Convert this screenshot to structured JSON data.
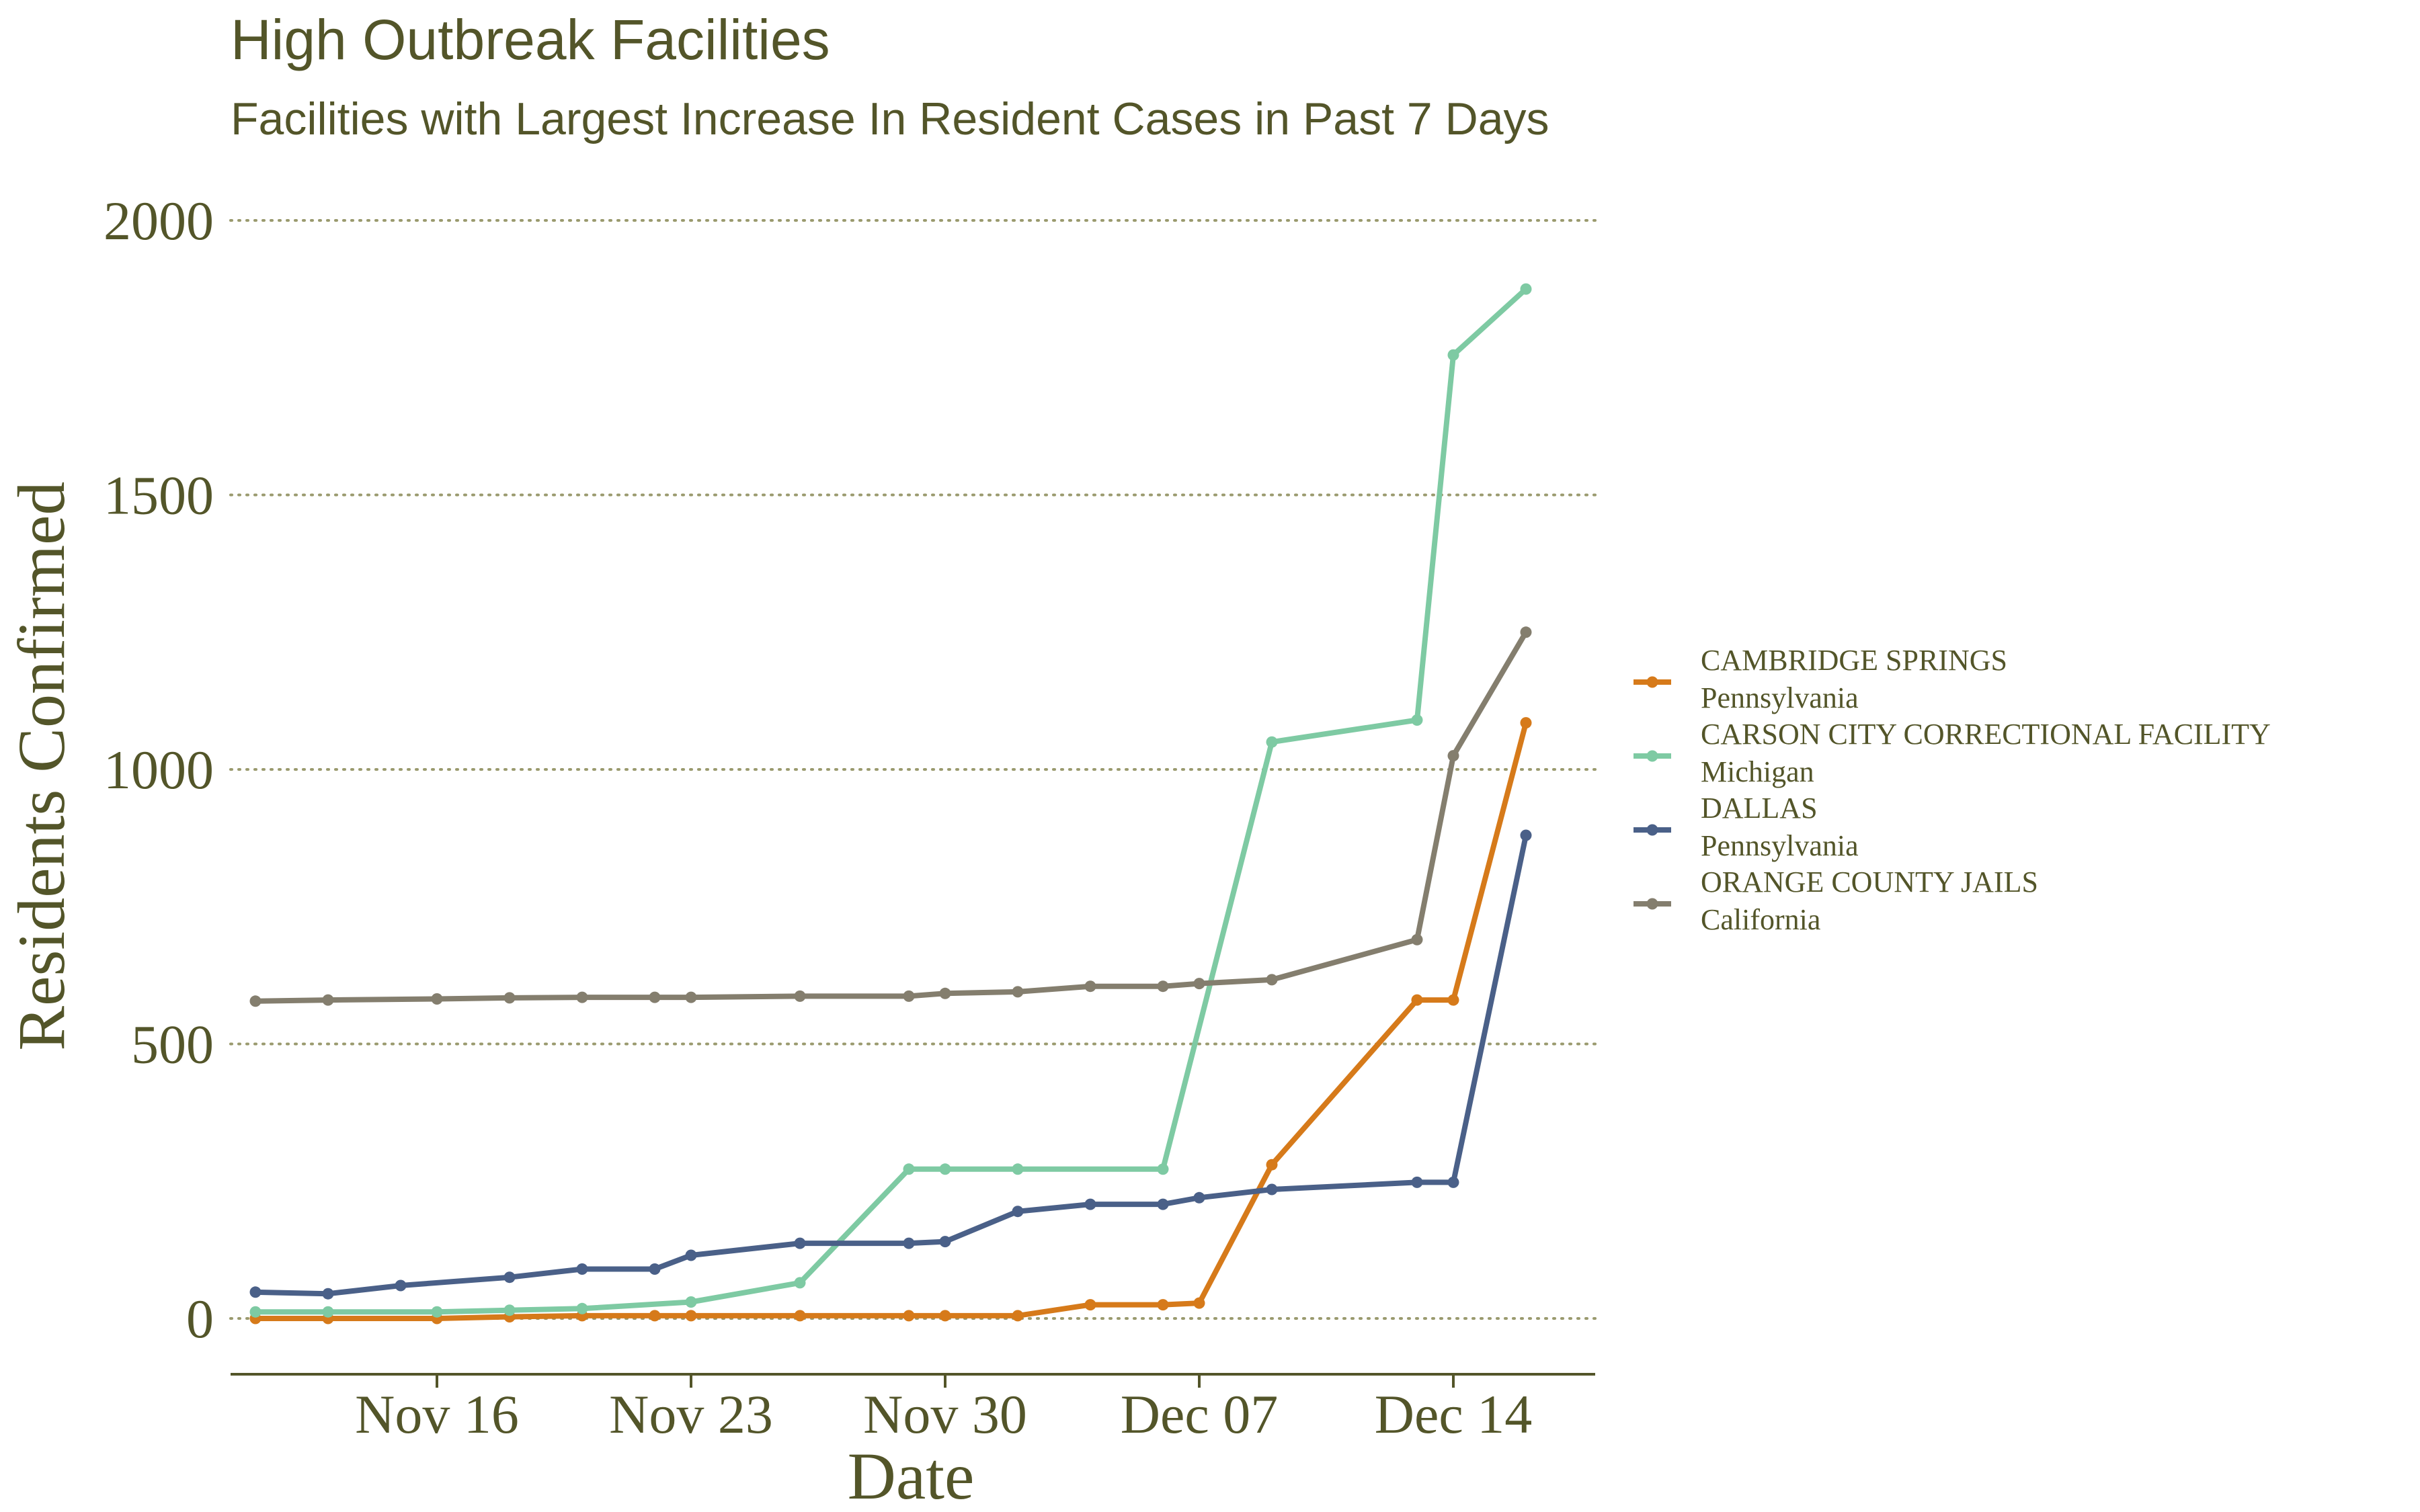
{
  "chart_data": {
    "type": "line",
    "title": "High Outbreak Facilities",
    "subtitle": "Facilities with Largest Increase In Resident Cases in Past 7 Days",
    "xlabel": "Date",
    "ylabel": "Residents Confirmed",
    "x_ticks": [
      "2020-11-16",
      "2020-11-23",
      "2020-11-30",
      "2020-12-07",
      "2020-12-14"
    ],
    "x_tick_labels": [
      "Nov 16",
      "Nov 23",
      "Nov 30",
      "Dec 07",
      "Dec 14"
    ],
    "xlim": [
      "2020-11-10",
      "2020-12-17"
    ],
    "y_ticks": [
      0,
      500,
      1000,
      1500,
      2000
    ],
    "ylim": [
      -100,
      2090
    ],
    "grid": "horizontal dotted",
    "legend_position": "right",
    "colors": {
      "text": "#535529",
      "grid": "#9a9a6e",
      "axis": "#535529"
    },
    "series": [
      {
        "name": "CAMBRIDGE SPRINGS",
        "state": "Pennsylvania",
        "color": "#d67a1a",
        "points": [
          [
            "2020-11-11",
            0
          ],
          [
            "2020-11-13",
            0
          ],
          [
            "2020-11-16",
            0
          ],
          [
            "2020-11-18",
            3
          ],
          [
            "2020-11-20",
            5
          ],
          [
            "2020-11-22",
            5
          ],
          [
            "2020-11-23",
            5
          ],
          [
            "2020-11-26",
            5
          ],
          [
            "2020-11-29",
            5
          ],
          [
            "2020-11-30",
            5
          ],
          [
            "2020-12-02",
            5
          ],
          [
            "2020-12-04",
            25
          ],
          [
            "2020-12-06",
            25
          ],
          [
            "2020-12-07",
            28
          ],
          [
            "2020-12-09",
            280
          ],
          [
            "2020-12-13",
            580
          ],
          [
            "2020-12-14",
            580
          ],
          [
            "2020-12-16",
            1085
          ]
        ]
      },
      {
        "name": "CARSON CITY CORRECTIONAL FACILITY",
        "state": "Michigan",
        "color": "#7ecaa3",
        "points": [
          [
            "2020-11-11",
            12
          ],
          [
            "2020-11-13",
            12
          ],
          [
            "2020-11-16",
            12
          ],
          [
            "2020-11-18",
            15
          ],
          [
            "2020-11-20",
            18
          ],
          [
            "2020-11-23",
            30
          ],
          [
            "2020-11-26",
            65
          ],
          [
            "2020-11-29",
            272
          ],
          [
            "2020-11-30",
            272
          ],
          [
            "2020-12-02",
            272
          ],
          [
            "2020-12-06",
            272
          ],
          [
            "2020-12-09",
            1050
          ],
          [
            "2020-12-13",
            1090
          ],
          [
            "2020-12-14",
            1755
          ],
          [
            "2020-12-16",
            1875
          ]
        ]
      },
      {
        "name": "DALLAS",
        "state": "Pennsylvania",
        "color": "#4a6088",
        "points": [
          [
            "2020-11-11",
            48
          ],
          [
            "2020-11-13",
            45
          ],
          [
            "2020-11-15",
            60
          ],
          [
            "2020-11-18",
            75
          ],
          [
            "2020-11-20",
            90
          ],
          [
            "2020-11-22",
            90
          ],
          [
            "2020-11-23",
            115
          ],
          [
            "2020-11-26",
            137
          ],
          [
            "2020-11-29",
            137
          ],
          [
            "2020-11-30",
            140
          ],
          [
            "2020-12-02",
            195
          ],
          [
            "2020-12-04",
            208
          ],
          [
            "2020-12-06",
            208
          ],
          [
            "2020-12-07",
            220
          ],
          [
            "2020-12-09",
            235
          ],
          [
            "2020-12-13",
            248
          ],
          [
            "2020-12-14",
            248
          ],
          [
            "2020-12-16",
            880
          ]
        ]
      },
      {
        "name": "ORANGE COUNTY JAILS",
        "state": "California",
        "color": "#847e6e",
        "points": [
          [
            "2020-11-11",
            578
          ],
          [
            "2020-11-13",
            580
          ],
          [
            "2020-11-16",
            582
          ],
          [
            "2020-11-18",
            584
          ],
          [
            "2020-11-20",
            585
          ],
          [
            "2020-11-22",
            585
          ],
          [
            "2020-11-23",
            585
          ],
          [
            "2020-11-26",
            587
          ],
          [
            "2020-11-29",
            587
          ],
          [
            "2020-11-30",
            592
          ],
          [
            "2020-12-02",
            595
          ],
          [
            "2020-12-04",
            605
          ],
          [
            "2020-12-06",
            605
          ],
          [
            "2020-12-07",
            610
          ],
          [
            "2020-12-09",
            617
          ],
          [
            "2020-12-13",
            690
          ],
          [
            "2020-12-14",
            1025
          ],
          [
            "2020-12-16",
            1250
          ]
        ]
      }
    ]
  }
}
